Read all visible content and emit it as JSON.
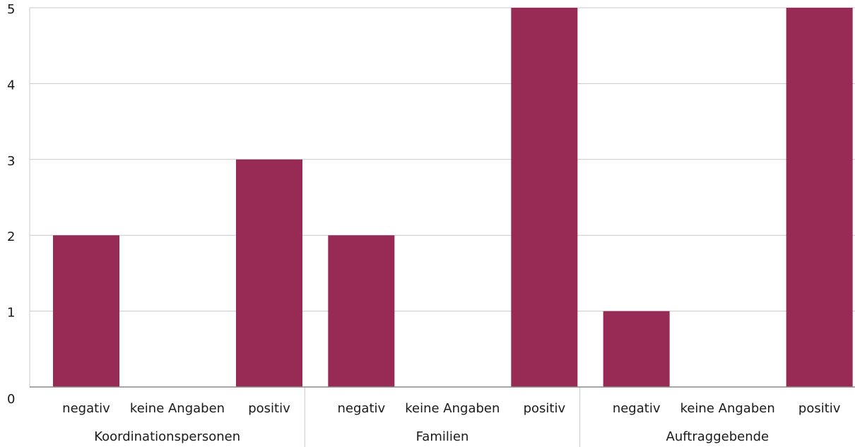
{
  "chart_data": {
    "type": "bar",
    "groups": [
      {
        "name": "Koordinationspersonen",
        "categories": [
          "negativ",
          "keine Angaben",
          "positiv"
        ],
        "values": [
          2,
          0,
          3
        ]
      },
      {
        "name": "Familien",
        "categories": [
          "negativ",
          "keine Angaben",
          "positiv"
        ],
        "values": [
          2,
          0,
          5
        ]
      },
      {
        "name": "Auftraggebende",
        "categories": [
          "negativ",
          "keine Angaben",
          "positiv"
        ],
        "values": [
          1,
          0,
          5
        ]
      }
    ],
    "y_ticks": [
      "0",
      "1",
      "2",
      "3",
      "4",
      "5"
    ],
    "ylim": [
      0,
      5
    ],
    "title": "",
    "xlabel": "",
    "ylabel": "",
    "grid": true,
    "legend": "none",
    "colors": {
      "bar": "#982b55",
      "grid": "#c8c8c8",
      "axis": "#8a8a8a"
    }
  }
}
